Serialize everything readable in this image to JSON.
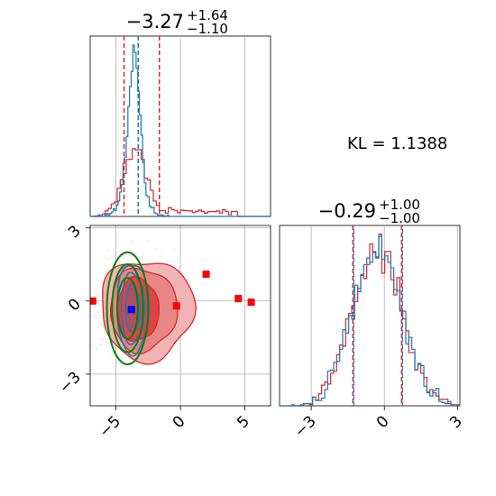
{
  "panels": {
    "top_left_title": {
      "main": "−3.27",
      "sup": "+1.64",
      "sub": "−1.10"
    },
    "bottom_right_title": {
      "main": "−0.29",
      "sup": "+1.00",
      "sub": "−1.00"
    },
    "kl_label": "KL = 1.1388"
  },
  "axes": {
    "x1_ticks": [
      "−5",
      "0",
      "5"
    ],
    "y2_ticks": [
      "3",
      "0",
      "−3"
    ],
    "x2_ticks": [
      "−3",
      "0",
      "3"
    ]
  },
  "colors": {
    "blue": "#1f77b4",
    "red": "#d62728",
    "green": "#0a7f0a",
    "marker_red": "#ff0000",
    "marker_blue": "#0000ff",
    "grid": "#b0b0b0"
  },
  "chart_data": {
    "type": "corner",
    "parameters": [
      "x1",
      "x2"
    ],
    "x1_range": [
      -7,
      7
    ],
    "x2_range": [
      -4.3,
      3.1
    ],
    "marginal_x1": {
      "blue_quantiles": [
        -4.37,
        -3.27,
        -1.63
      ],
      "red_quantiles": [
        -4.37,
        -3.27,
        -1.63
      ],
      "series": [
        {
          "color": "blue",
          "mode_center": -3.6,
          "spread": 0.55
        },
        {
          "color": "red",
          "mode_center": -3.6,
          "spread": 1.1,
          "tail_to": 4.5
        }
      ]
    },
    "marginal_x2": {
      "quantiles": [
        -1.29,
        -0.29,
        0.71
      ],
      "series": [
        {
          "color": "blue",
          "center": -0.29,
          "spread": 1.0
        },
        {
          "color": "red",
          "center": -0.29,
          "spread": 1.0
        }
      ]
    },
    "red_markers": [
      {
        "x1": -6.8,
        "x2": 0.0
      },
      {
        "x1": 2.0,
        "x2": 1.1
      },
      {
        "x1": -0.3,
        "x2": -0.2
      },
      {
        "x1": 4.5,
        "x2": 0.1
      },
      {
        "x1": 5.5,
        "x2": -0.05
      }
    ],
    "blue_markers": [
      {
        "x1": -3.8,
        "x2": -0.35
      }
    ]
  }
}
